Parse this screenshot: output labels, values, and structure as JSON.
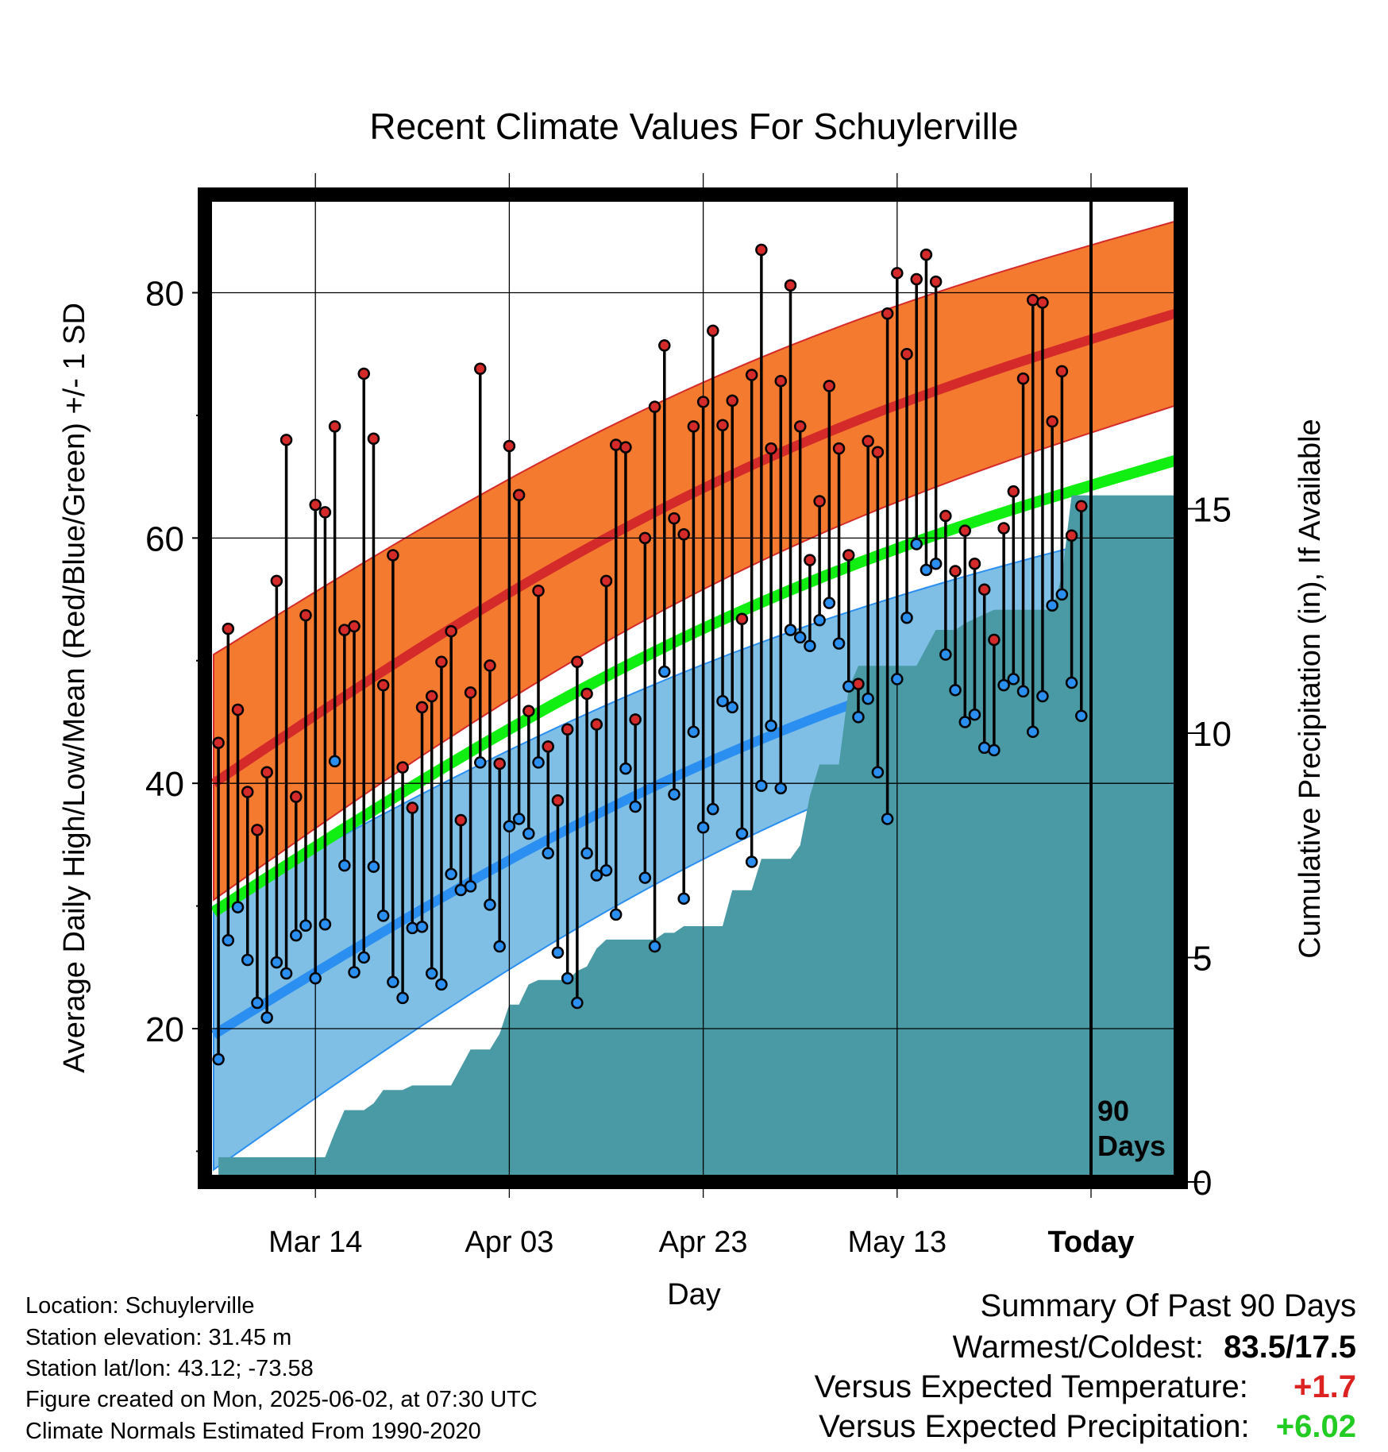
{
  "chart_data": {
    "type": "line",
    "title": "Recent Climate Values For Schuylerville",
    "xlabel": "Day",
    "ylabel": "Average Daily High/Low/Mean (Red/Blue/Green) +/- 1 SD",
    "y2label": "Cumulative Precipitation (in), If Available",
    "ylim": [
      7.5,
      88
    ],
    "y2lim": [
      0,
      22
    ],
    "yticks": [
      "20",
      "40",
      "60",
      "80"
    ],
    "y2ticks": [
      "0",
      "5",
      "10",
      "15"
    ],
    "xlim": [
      -0.5,
      99.5
    ],
    "xticks": [
      {
        "day": 10,
        "label": "Mar 14"
      },
      {
        "day": 30,
        "label": "Apr 03"
      },
      {
        "day": 50,
        "label": "Apr 23"
      },
      {
        "day": 70,
        "label": "May 13"
      },
      {
        "day": 90,
        "label": "Today"
      }
    ],
    "today_day": 90,
    "today_label": [
      "90",
      "Days"
    ],
    "grid": true,
    "normals": {
      "high": {
        "start": 40.0,
        "end": 78.5,
        "sd_low_start": 30.5,
        "sd_low_end": 71.0,
        "sd_high_start": 50.5,
        "sd_high_end": 86.0
      },
      "low": {
        "start": 19.5,
        "end": 54.8,
        "sd_low_start": 8.5,
        "sd_low_end": 49.0,
        "sd_high_start": 30.0,
        "sd_high_end": 61.5
      },
      "mean": {
        "start": 29.5,
        "end": 66.5
      }
    },
    "series": [
      {
        "name": "High",
        "values": [
          43.3,
          52.6,
          46.0,
          39.3,
          36.2,
          40.9,
          56.5,
          68.0,
          38.9,
          53.7,
          62.7,
          62.1,
          69.1,
          52.5,
          52.8,
          73.4,
          68.1,
          48.0,
          58.6,
          41.3,
          38.0,
          46.2,
          47.1,
          49.9,
          52.4,
          37.0,
          47.4,
          73.8,
          49.6,
          41.6,
          67.5,
          63.5,
          45.9,
          55.7,
          43.0,
          38.6,
          44.4,
          49.9,
          47.3,
          44.8,
          56.5,
          67.6,
          67.4,
          45.2,
          60.0,
          70.7,
          75.7,
          61.6,
          60.3,
          69.1,
          71.1,
          76.9,
          69.2,
          71.2,
          53.4,
          73.3,
          83.5,
          67.3,
          72.8,
          80.6,
          69.1,
          58.2,
          63.0,
          72.4,
          67.3,
          58.6,
          48.1,
          67.9,
          67.0,
          78.3,
          81.6,
          75.0,
          81.1,
          83.1,
          80.9,
          61.8,
          57.3,
          60.6,
          57.9,
          55.8,
          51.7,
          60.8,
          63.8,
          73.0,
          79.4,
          79.2,
          69.5,
          73.6,
          60.2,
          62.6
        ]
      },
      {
        "name": "Low",
        "values": [
          17.5,
          27.2,
          29.9,
          25.6,
          22.1,
          20.9,
          25.4,
          24.5,
          27.6,
          28.4,
          24.1,
          28.5,
          41.8,
          33.3,
          24.6,
          25.8,
          33.2,
          29.2,
          23.8,
          22.5,
          28.2,
          28.3,
          24.5,
          23.6,
          32.6,
          31.3,
          31.6,
          41.7,
          30.1,
          26.7,
          36.5,
          37.1,
          35.9,
          41.7,
          34.3,
          26.2,
          24.1,
          22.1,
          34.3,
          32.5,
          32.9,
          29.3,
          41.2,
          38.1,
          32.3,
          26.7,
          49.1,
          39.1,
          30.6,
          44.2,
          36.4,
          37.9,
          46.7,
          46.2,
          35.9,
          33.6,
          39.8,
          44.7,
          39.6,
          52.5,
          51.9,
          51.2,
          53.3,
          54.7,
          51.4,
          47.9,
          45.4,
          46.9,
          40.9,
          37.1,
          48.5,
          53.5,
          59.5,
          57.4,
          57.9,
          50.5,
          47.6,
          45.0,
          45.6,
          42.9,
          42.7,
          48.0,
          48.5,
          47.5,
          44.2,
          47.1,
          54.5,
          55.4,
          48.2,
          45.5
        ]
      }
    ],
    "precip": [
      [
        0,
        0.55
      ],
      [
        11,
        0.55
      ],
      [
        12,
        1.1
      ],
      [
        13,
        1.6
      ],
      [
        15,
        1.6
      ],
      [
        16,
        1.75
      ],
      [
        17,
        2.05
      ],
      [
        19,
        2.05
      ],
      [
        20,
        2.15
      ],
      [
        24,
        2.15
      ],
      [
        25,
        2.55
      ],
      [
        26,
        2.95
      ],
      [
        28,
        2.95
      ],
      [
        29,
        3.3
      ],
      [
        30,
        3.95
      ],
      [
        31,
        3.95
      ],
      [
        32,
        4.4
      ],
      [
        33,
        4.5
      ],
      [
        36,
        4.5
      ],
      [
        37,
        4.7
      ],
      [
        38,
        4.8
      ],
      [
        39,
        5.2
      ],
      [
        40,
        5.4
      ],
      [
        45,
        5.4
      ],
      [
        46,
        5.55
      ],
      [
        47,
        5.55
      ],
      [
        48,
        5.7
      ],
      [
        52,
        5.7
      ],
      [
        53,
        6.5
      ],
      [
        55,
        6.5
      ],
      [
        56,
        7.2
      ],
      [
        59,
        7.2
      ],
      [
        60,
        7.5
      ],
      [
        61,
        8.6
      ],
      [
        62,
        9.3
      ],
      [
        63,
        9.3
      ],
      [
        64,
        9.3
      ],
      [
        65,
        11.0
      ],
      [
        66,
        11.5
      ],
      [
        69,
        11.5
      ],
      [
        70,
        11.5
      ],
      [
        72,
        11.5
      ],
      [
        73,
        11.9
      ],
      [
        74,
        12.3
      ],
      [
        76,
        12.3
      ],
      [
        77,
        12.45
      ],
      [
        79,
        12.65
      ],
      [
        80,
        12.75
      ],
      [
        86,
        12.75
      ],
      [
        87,
        13.5
      ],
      [
        88,
        15.3
      ],
      [
        99.5,
        15.3
      ]
    ]
  },
  "footer": {
    "lines": [
      "Location: Schuylerville",
      "Station elevation: 31.45 m",
      "Station lat/lon: 43.12; -73.58",
      "Figure created on Mon, 2025-06-02, at 07:30 UTC",
      "Climate Normals Estimated From 1990-2020"
    ]
  },
  "summary": {
    "title": "Summary Of Past 90 Days",
    "warmest_coldest_label": "Warmest/Coldest:",
    "warmest_coldest_value": "83.5/17.5",
    "temp_label": "Versus Expected Temperature:",
    "temp_value": "+1.7",
    "precip_label": "Versus Expected Precipitation:",
    "precip_value": "+6.02"
  },
  "colors": {
    "high_band": "#f47a30",
    "high_line": "#d42a2a",
    "low_band": "#7fbfe6",
    "low_line": "#2a8ff0",
    "mean_line": "#11ee11",
    "precip_fill": "#4a9aa5",
    "high_dot": "#d42a2a",
    "low_dot": "#2a8ff0",
    "warm_text": "#dd2222",
    "precip_text": "#22cc22"
  }
}
